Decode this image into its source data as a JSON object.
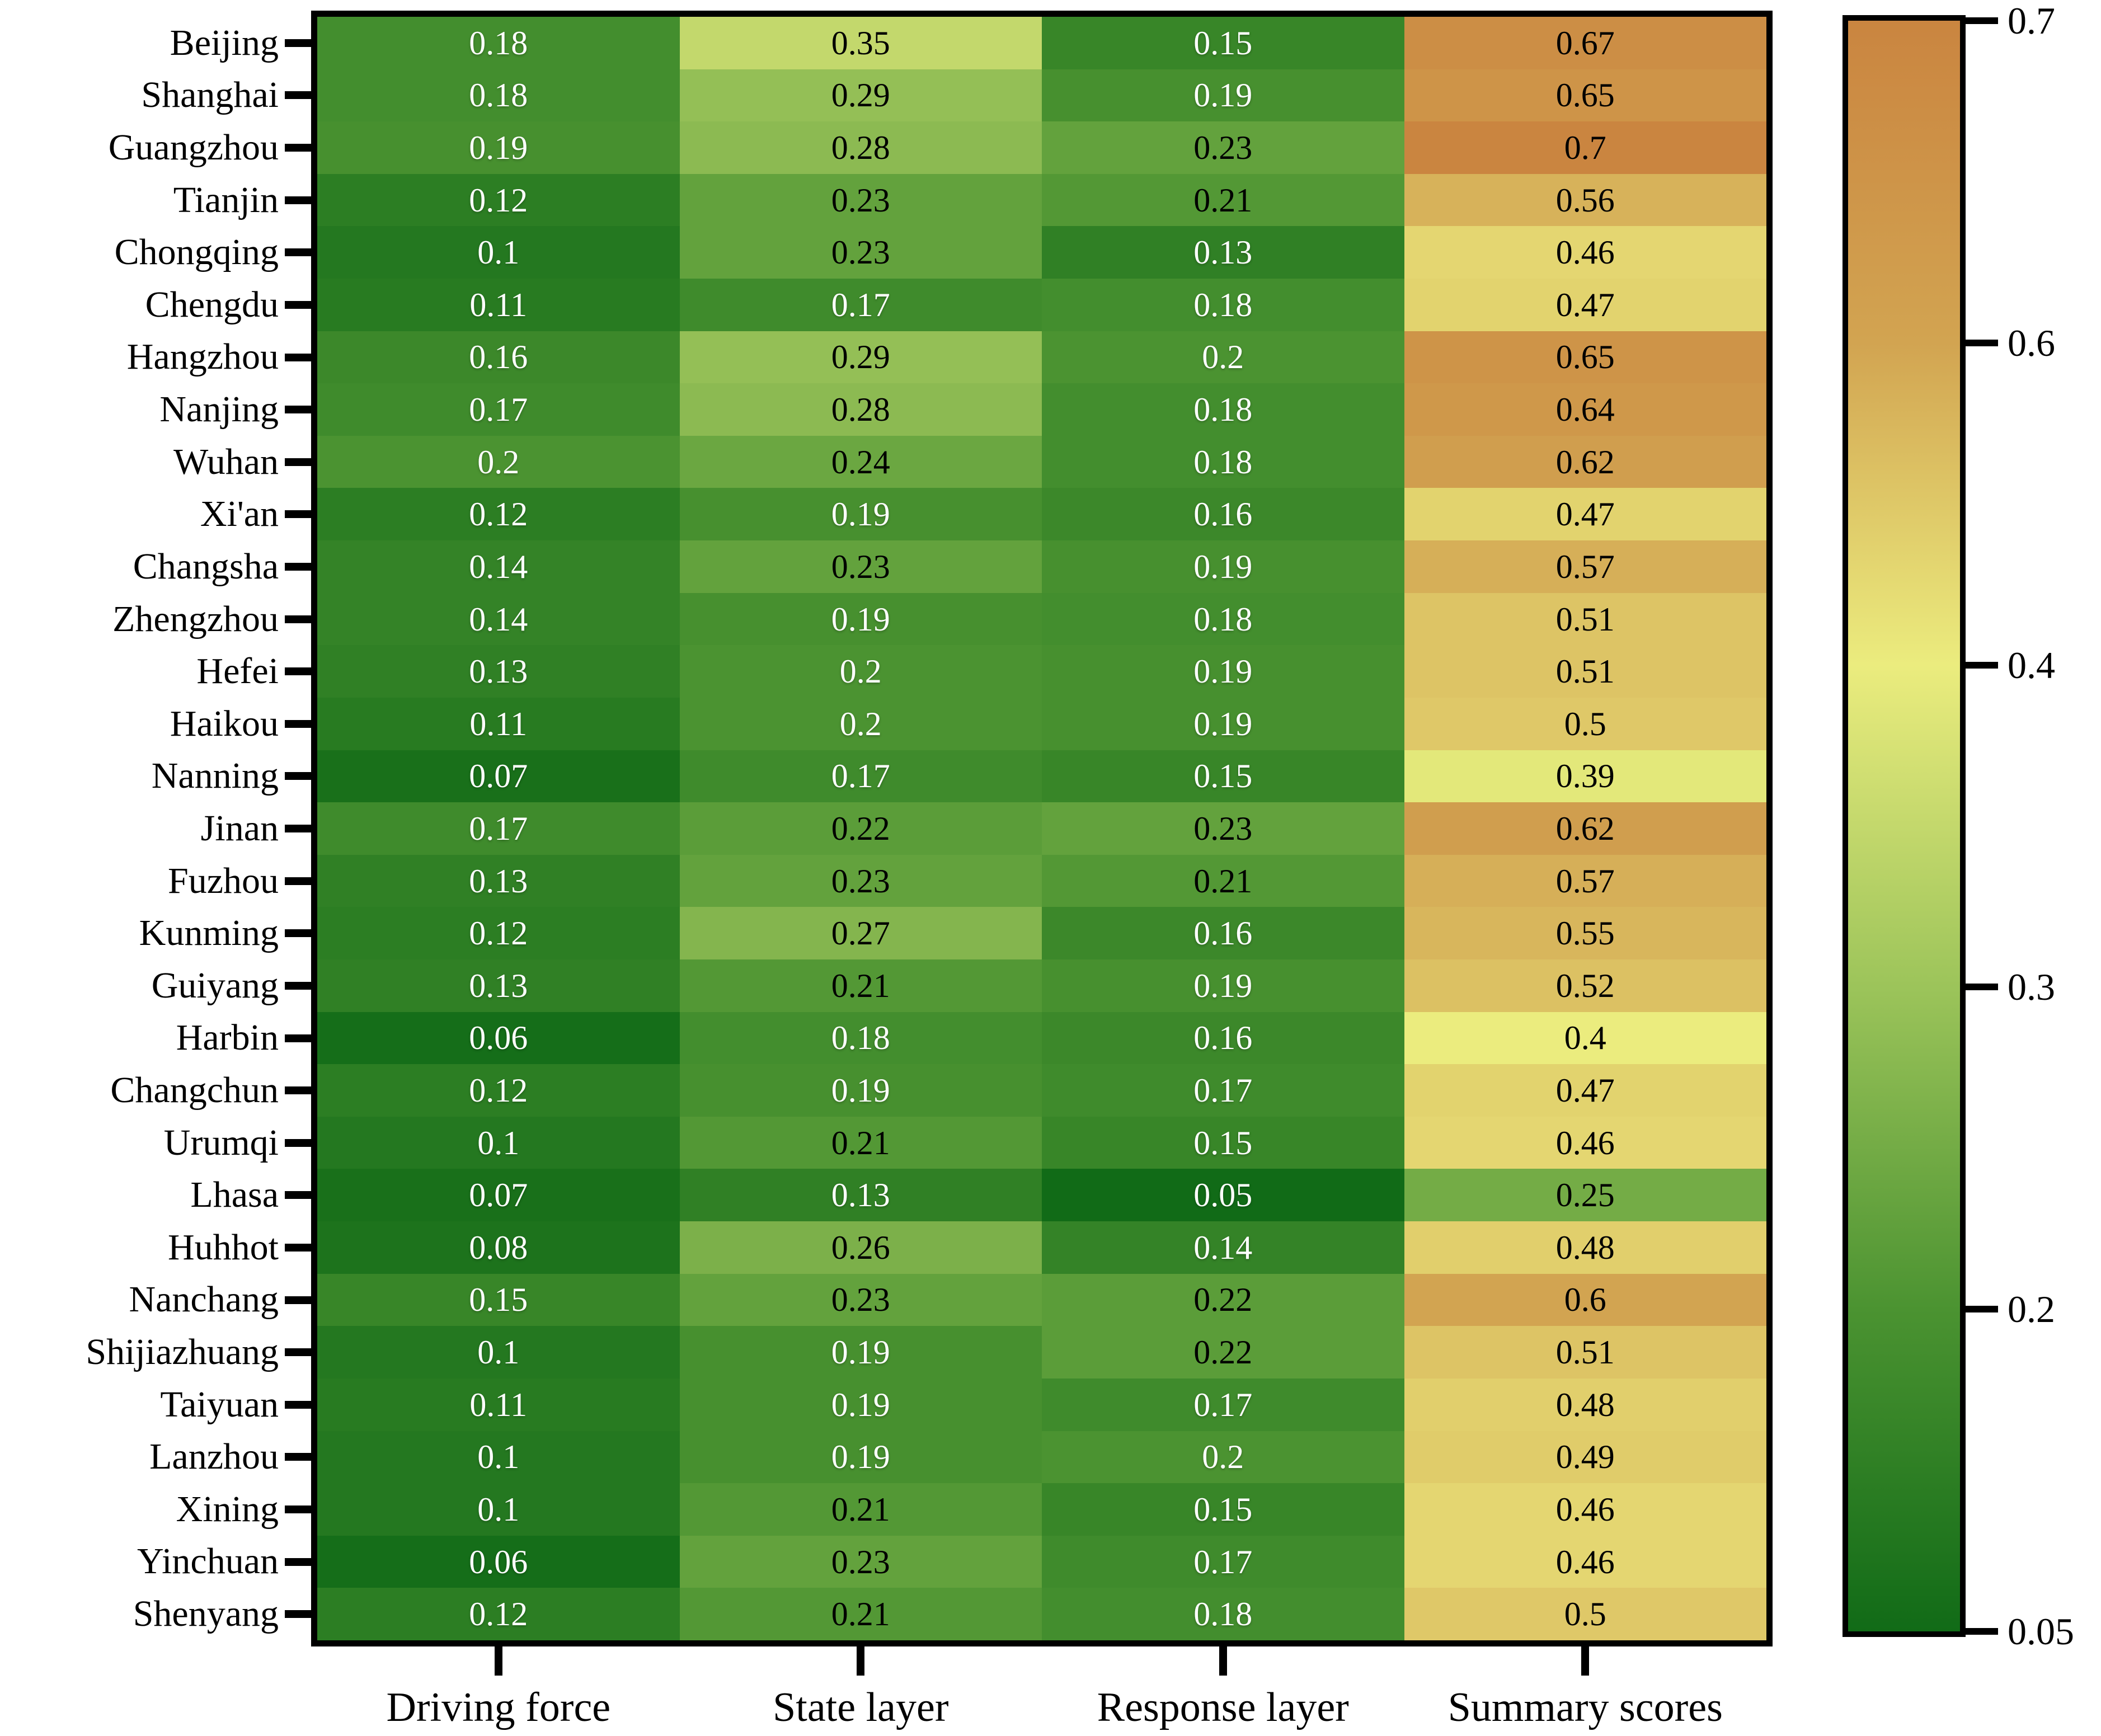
{
  "chart_data": {
    "type": "heatmap",
    "title": "",
    "rows": [
      "Beijing",
      "Shanghai",
      "Guangzhou",
      "Tianjin",
      "Chongqing",
      "Chengdu",
      "Hangzhou",
      "Nanjing",
      "Wuhan",
      "Xi'an",
      "Changsha",
      "Zhengzhou",
      "Hefei",
      "Haikou",
      "Nanning",
      "Jinan",
      "Fuzhou",
      "Kunming",
      "Guiyang",
      "Harbin",
      "Changchun",
      "Urumqi",
      "Lhasa",
      "Huhhot",
      "Nanchang",
      "Shijiazhuang",
      "Taiyuan",
      "Lanzhou",
      "Xining",
      "Yinchuan",
      "Shenyang"
    ],
    "columns": [
      "Driving force",
      "State layer",
      "Response layer",
      "Summary scores"
    ],
    "values": [
      [
        0.18,
        0.35,
        0.15,
        0.67
      ],
      [
        0.18,
        0.29,
        0.19,
        0.65
      ],
      [
        0.19,
        0.28,
        0.23,
        0.7
      ],
      [
        0.12,
        0.23,
        0.21,
        0.56
      ],
      [
        0.1,
        0.23,
        0.13,
        0.46
      ],
      [
        0.11,
        0.17,
        0.18,
        0.47
      ],
      [
        0.16,
        0.29,
        0.2,
        0.65
      ],
      [
        0.17,
        0.28,
        0.18,
        0.64
      ],
      [
        0.2,
        0.24,
        0.18,
        0.62
      ],
      [
        0.12,
        0.19,
        0.16,
        0.47
      ],
      [
        0.14,
        0.23,
        0.19,
        0.57
      ],
      [
        0.14,
        0.19,
        0.18,
        0.51
      ],
      [
        0.13,
        0.2,
        0.19,
        0.51
      ],
      [
        0.11,
        0.2,
        0.19,
        0.5
      ],
      [
        0.07,
        0.17,
        0.15,
        0.39
      ],
      [
        0.17,
        0.22,
        0.23,
        0.62
      ],
      [
        0.13,
        0.23,
        0.21,
        0.57
      ],
      [
        0.12,
        0.27,
        0.16,
        0.55
      ],
      [
        0.13,
        0.21,
        0.19,
        0.52
      ],
      [
        0.06,
        0.18,
        0.16,
        0.4
      ],
      [
        0.12,
        0.19,
        0.17,
        0.47
      ],
      [
        0.1,
        0.21,
        0.15,
        0.46
      ],
      [
        0.07,
        0.13,
        0.05,
        0.25
      ],
      [
        0.08,
        0.26,
        0.14,
        0.48
      ],
      [
        0.15,
        0.23,
        0.22,
        0.6
      ],
      [
        0.1,
        0.19,
        0.22,
        0.51
      ],
      [
        0.11,
        0.19,
        0.17,
        0.48
      ],
      [
        0.1,
        0.19,
        0.2,
        0.49
      ],
      [
        0.1,
        0.21,
        0.15,
        0.46
      ],
      [
        0.06,
        0.23,
        0.17,
        0.46
      ],
      [
        0.12,
        0.21,
        0.18,
        0.5
      ]
    ],
    "colorbar": {
      "vmin": 0.05,
      "vmax": 0.7,
      "tick_labels_top_to_bottom": [
        "0.7",
        "0.6",
        "0.4",
        "0.3",
        "0.2",
        "0.05"
      ],
      "tick_values_top_to_bottom": [
        0.7,
        0.6,
        0.4,
        0.3,
        0.2,
        0.05
      ],
      "colormap_anchors": [
        {
          "value": 0.05,
          "color": "#116b17"
        },
        {
          "value": 0.2,
          "color": "#4b9331"
        },
        {
          "value": 0.3,
          "color": "#9cc45a"
        },
        {
          "value": 0.4,
          "color": "#ebec7e"
        },
        {
          "value": 0.6,
          "color": "#d2a451"
        },
        {
          "value": 0.7,
          "color": "#ca8540"
        }
      ]
    },
    "cell_text_colors": {
      "light": "#ffffff",
      "dark": "#000000",
      "light_text_value_max": 0.2
    },
    "layout": {
      "grid": "off",
      "legend": "colorbar-right",
      "axis_color": "#000000"
    }
  }
}
